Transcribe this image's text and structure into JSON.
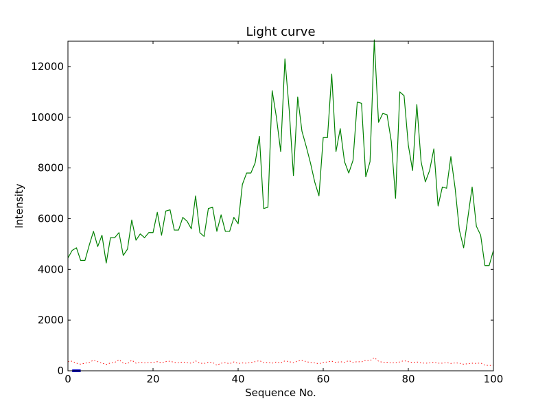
{
  "chart_data": {
    "type": "line",
    "title": "Light curve",
    "xlabel": "Sequence No.",
    "ylabel": "Intensity",
    "xlim": [
      0,
      100
    ],
    "ylim": [
      0,
      13000
    ],
    "xticks": [
      0,
      20,
      40,
      60,
      80,
      100
    ],
    "yticks": [
      0,
      2000,
      4000,
      6000,
      8000,
      10000,
      12000
    ],
    "grid": false,
    "legend": "none",
    "series": [
      {
        "style": "solid",
        "color": "#008000",
        "x": [
          0,
          1,
          2,
          3,
          4,
          5,
          6,
          7,
          8,
          9,
          10,
          11,
          12,
          13,
          14,
          15,
          16,
          17,
          18,
          19,
          20,
          21,
          22,
          23,
          24,
          25,
          26,
          27,
          28,
          29,
          30,
          31,
          32,
          33,
          34,
          35,
          36,
          37,
          38,
          39,
          40,
          41,
          42,
          43,
          44,
          45,
          46,
          47,
          48,
          49,
          50,
          51,
          52,
          53,
          54,
          55,
          56,
          57,
          58,
          59,
          60,
          61,
          62,
          63,
          64,
          65,
          66,
          67,
          68,
          69,
          70,
          71,
          72,
          73,
          74,
          75,
          76,
          77,
          78,
          79,
          80,
          81,
          82,
          83,
          84,
          85,
          86,
          87,
          88,
          89,
          90,
          91,
          92,
          93,
          94,
          95,
          96,
          97,
          98,
          99,
          100
        ],
        "y": [
          4450,
          4750,
          4850,
          4350,
          4350,
          4950,
          5500,
          4900,
          5350,
          4250,
          5250,
          5250,
          5450,
          4550,
          4800,
          5950,
          5150,
          5400,
          5250,
          5450,
          5450,
          6250,
          5350,
          6300,
          6350,
          5550,
          5550,
          6050,
          5900,
          5600,
          6900,
          5450,
          5300,
          6400,
          6450,
          5500,
          6150,
          5500,
          5500,
          6050,
          5800,
          7350,
          7800,
          7800,
          8200,
          9250,
          6400,
          6450,
          11050,
          10000,
          8650,
          12300,
          10300,
          7700,
          10800,
          9450,
          8850,
          8200,
          7450,
          6900,
          9200,
          9200,
          11700,
          8650,
          9550,
          8250,
          7800,
          8300,
          10600,
          10550,
          7650,
          8250,
          13050,
          9800,
          10150,
          10100,
          9050,
          6800,
          11000,
          10850,
          8900,
          7900,
          10500,
          8250,
          7450,
          7900,
          8750,
          6500,
          7250,
          7200,
          8450,
          7200,
          5550,
          4850,
          6050,
          7250,
          5700,
          5350,
          4150,
          4150,
          4750
        ]
      },
      {
        "style": "dotted",
        "color": "#ff0000",
        "x": [
          0,
          1,
          2,
          3,
          4,
          5,
          6,
          7,
          8,
          9,
          10,
          11,
          12,
          13,
          14,
          15,
          16,
          17,
          18,
          19,
          20,
          21,
          22,
          23,
          24,
          25,
          26,
          27,
          28,
          29,
          30,
          31,
          32,
          33,
          34,
          35,
          36,
          37,
          38,
          39,
          40,
          41,
          42,
          43,
          44,
          45,
          46,
          47,
          48,
          49,
          50,
          51,
          52,
          53,
          54,
          55,
          56,
          57,
          58,
          59,
          60,
          61,
          62,
          63,
          64,
          65,
          66,
          67,
          68,
          69,
          70,
          71,
          72,
          73,
          74,
          75,
          76,
          77,
          78,
          79,
          80,
          81,
          82,
          83,
          84,
          85,
          86,
          87,
          88,
          89,
          90,
          91,
          92,
          93,
          94,
          95,
          96,
          97,
          98,
          99,
          100
        ],
        "y": [
          360,
          380,
          300,
          260,
          300,
          330,
          420,
          360,
          300,
          250,
          310,
          330,
          440,
          300,
          280,
          420,
          300,
          340,
          310,
          330,
          330,
          360,
          320,
          360,
          380,
          330,
          320,
          350,
          320,
          300,
          390,
          300,
          290,
          340,
          330,
          220,
          300,
          320,
          280,
          350,
          290,
          310,
          300,
          330,
          360,
          400,
          320,
          330,
          300,
          350,
          310,
          390,
          360,
          320,
          380,
          420,
          360,
          330,
          310,
          280,
          330,
          350,
          380,
          330,
          360,
          330,
          400,
          330,
          360,
          350,
          420,
          400,
          520,
          380,
          330,
          340,
          310,
          320,
          350,
          400,
          360,
          330,
          350,
          310,
          300,
          310,
          340,
          300,
          300,
          320,
          290,
          310,
          300,
          260,
          280,
          300,
          290,
          310,
          220,
          210,
          220
        ]
      },
      {
        "style": "solid-thick",
        "color": "#0000cc",
        "x": [
          1,
          1.5,
          2,
          2.5,
          3
        ],
        "y": [
          0,
          0,
          0,
          0,
          0
        ]
      }
    ]
  }
}
